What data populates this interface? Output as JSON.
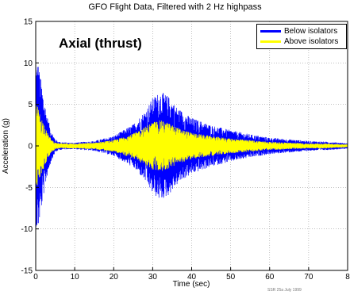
{
  "chart_data": {
    "type": "line",
    "title": "GFO Flight Data, Filtered with 2 Hz highpass",
    "annotation": "Axial (thrust)",
    "xlabel": "Time (sec)",
    "ylabel": "Acceleration (g)",
    "xlim": [
      0,
      80
    ],
    "ylim": [
      -15,
      15
    ],
    "xticks": [
      "0",
      "10",
      "20",
      "30",
      "40",
      "50",
      "60",
      "70",
      "8"
    ],
    "yticks": [
      "15",
      "10",
      "5",
      "0",
      "-5",
      "-10",
      "-15"
    ],
    "grid": true,
    "legend_position": "top-right",
    "series": [
      {
        "name": "Below isolators",
        "color": "#0000ff",
        "envelope": {
          "t": [
            0,
            0.5,
            1,
            2,
            3,
            4,
            5,
            6,
            8,
            10,
            15,
            20,
            25,
            28,
            30,
            32,
            34,
            36,
            38,
            40,
            45,
            50,
            55,
            60,
            65,
            70,
            75,
            78,
            80
          ],
          "amp": [
            9.5,
            10.5,
            9,
            6,
            3.5,
            1.8,
            0.8,
            0.5,
            0.4,
            0.4,
            0.6,
            1.2,
            2.6,
            4.2,
            5.8,
            6.6,
            6.0,
            4.8,
            4.0,
            3.4,
            2.5,
            1.9,
            1.4,
            1.0,
            0.8,
            0.6,
            0.5,
            0.4,
            0.3
          ]
        }
      },
      {
        "name": "Above isolators",
        "color": "#ffff00",
        "envelope": {
          "t": [
            0,
            0.5,
            1,
            2,
            3,
            4,
            5,
            6,
            8,
            10,
            15,
            20,
            25,
            28,
            30,
            32,
            34,
            36,
            38,
            40,
            45,
            50,
            55,
            60,
            65,
            70,
            75,
            78,
            80
          ],
          "amp": [
            5.0,
            4.8,
            4.0,
            2.8,
            1.6,
            0.8,
            0.4,
            0.3,
            0.3,
            0.3,
            0.4,
            0.7,
            1.5,
            2.3,
            2.9,
            3.1,
            2.8,
            2.3,
            1.9,
            1.6,
            1.2,
            0.9,
            0.7,
            0.5,
            0.4,
            0.3,
            0.3,
            0.2,
            0.2
          ]
        }
      }
    ]
  },
  "stamp": "SSR 25a July 1999"
}
